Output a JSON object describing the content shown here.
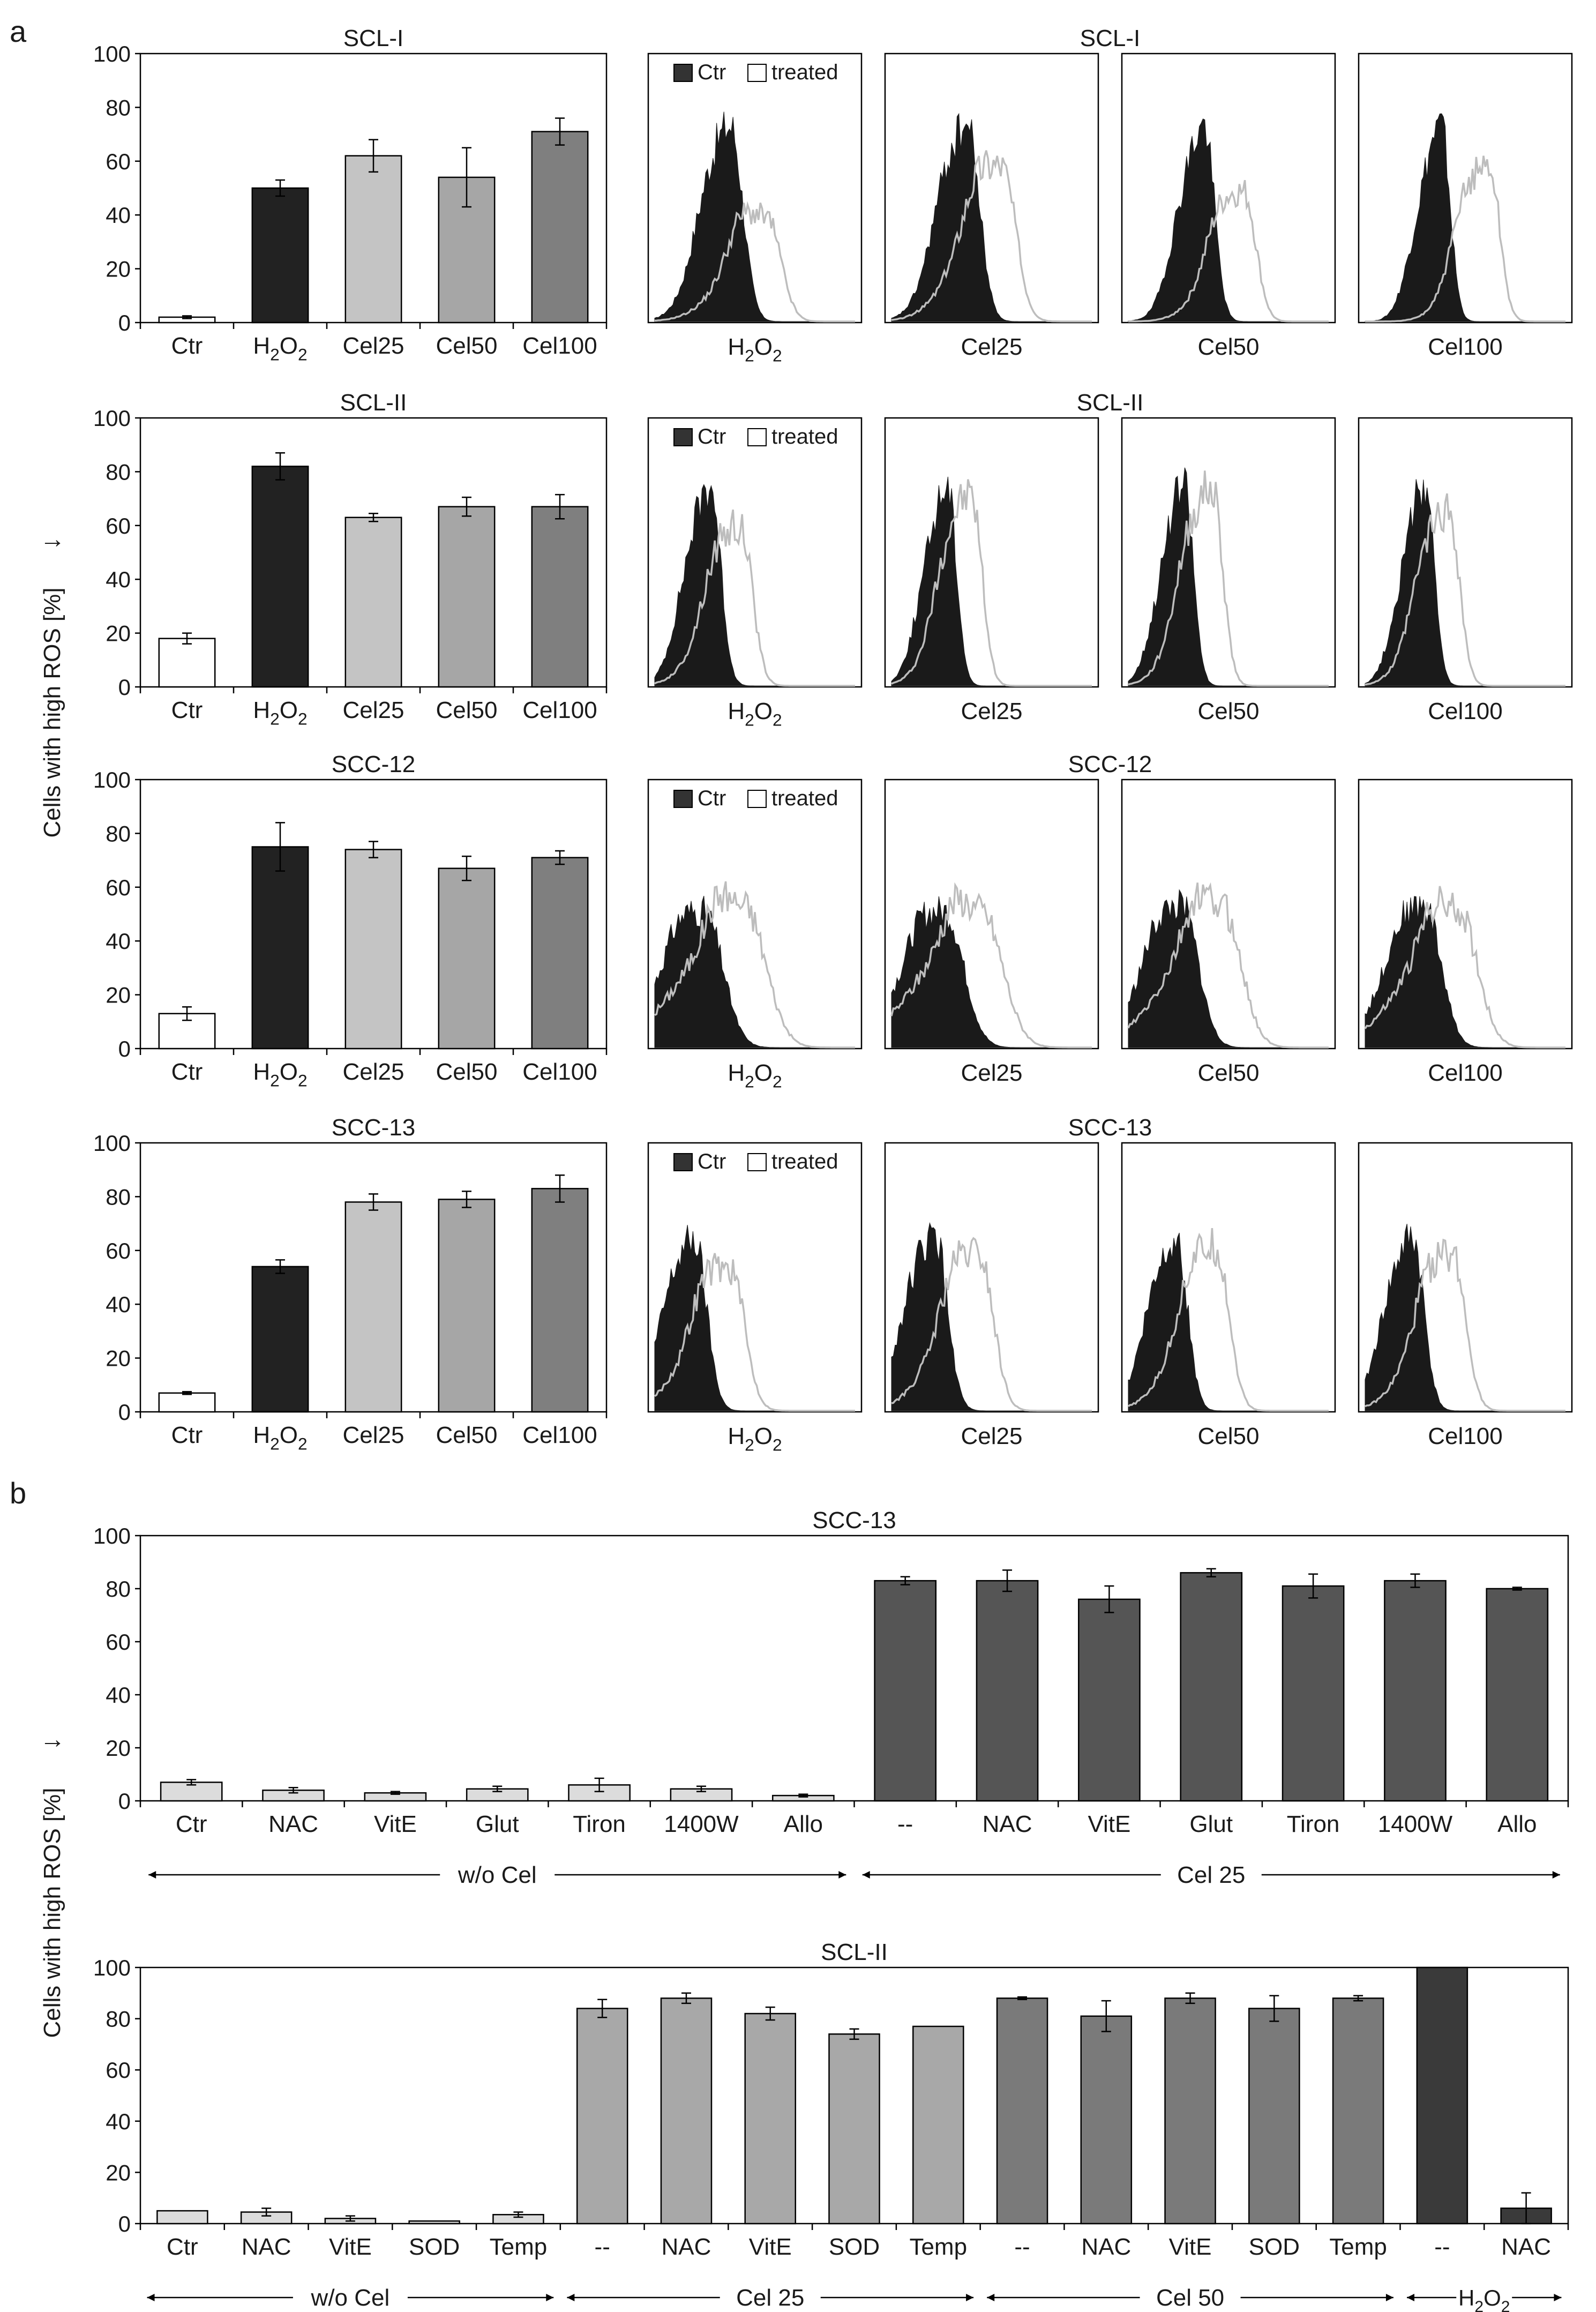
{
  "figure": {
    "panel_a_letter": "a",
    "panel_b_letter": "b",
    "y_axis_label": "Cells with high ROS [%]",
    "arrow_glyph": "→"
  },
  "colors": {
    "ctr_bar": "#ffffff",
    "h2o2_bar": "#222222",
    "cel25_bar": "#c4c4c4",
    "cel50_bar": "#a6a6a6",
    "cel100_bar": "#7f7f7f",
    "wo_cel_bar": "#dcdcdc",
    "cel25_b_bar": "#555555",
    "sclii_cel25_bar": "#a8a8a8",
    "sclii_cel50_bar": "#7a7a7a",
    "sclii_h2o2_bar": "#3a3a3a",
    "hist_ctr_fill": "#1a1a1a",
    "hist_treated_line": "#bdbdbd"
  },
  "hist_legend": {
    "ctr": "Ctr",
    "treated": "treated"
  },
  "chart_data": [
    {
      "id": "a-scl1",
      "type": "bar",
      "title": "SCL-I",
      "ylim": [
        0,
        100
      ],
      "yticks": [
        0,
        20,
        40,
        60,
        80,
        100
      ],
      "categories": [
        {
          "pre": "Ctr"
        },
        {
          "pre": "H",
          "sub": "2",
          "mid": "O",
          "sub2": "2"
        },
        {
          "pre": "Cel25"
        },
        {
          "pre": "Cel50"
        },
        {
          "pre": "Cel100"
        }
      ],
      "values": [
        2,
        50,
        62,
        54,
        71
      ],
      "errors": [
        0.5,
        3,
        6,
        11,
        5
      ],
      "colors": [
        "ctr_bar",
        "h2o2_bar",
        "cel25_bar",
        "cel50_bar",
        "cel100_bar"
      ]
    },
    {
      "id": "a-scl2",
      "type": "bar",
      "title": "SCL-II",
      "ylim": [
        0,
        100
      ],
      "yticks": [
        0,
        20,
        40,
        60,
        80,
        100
      ],
      "categories": [
        {
          "pre": "Ctr"
        },
        {
          "pre": "H",
          "sub": "2",
          "mid": "O",
          "sub2": "2"
        },
        {
          "pre": "Cel25"
        },
        {
          "pre": "Cel50"
        },
        {
          "pre": "Cel100"
        }
      ],
      "values": [
        18,
        82,
        63,
        67,
        67
      ],
      "errors": [
        2,
        5,
        1.5,
        3.5,
        4.5
      ],
      "colors": [
        "ctr_bar",
        "h2o2_bar",
        "cel25_bar",
        "cel50_bar",
        "cel100_bar"
      ]
    },
    {
      "id": "a-scc12",
      "type": "bar",
      "title": "SCC-12",
      "ylim": [
        0,
        100
      ],
      "yticks": [
        0,
        20,
        40,
        60,
        80,
        100
      ],
      "categories": [
        {
          "pre": "Ctr"
        },
        {
          "pre": "H",
          "sub": "2",
          "mid": "O",
          "sub2": "2"
        },
        {
          "pre": "Cel25"
        },
        {
          "pre": "Cel50"
        },
        {
          "pre": "Cel100"
        }
      ],
      "values": [
        13,
        75,
        74,
        67,
        71
      ],
      "errors": [
        2.5,
        9,
        3,
        4.5,
        2.5
      ],
      "colors": [
        "ctr_bar",
        "h2o2_bar",
        "cel25_bar",
        "cel50_bar",
        "cel100_bar"
      ]
    },
    {
      "id": "a-scc13",
      "type": "bar",
      "title": "SCC-13",
      "ylim": [
        0,
        100
      ],
      "yticks": [
        0,
        20,
        40,
        60,
        80,
        100
      ],
      "categories": [
        {
          "pre": "Ctr"
        },
        {
          "pre": "H",
          "sub": "2",
          "mid": "O",
          "sub2": "2"
        },
        {
          "pre": "Cel25"
        },
        {
          "pre": "Cel50"
        },
        {
          "pre": "Cel100"
        }
      ],
      "values": [
        7,
        54,
        78,
        79,
        83
      ],
      "errors": [
        0.5,
        2.5,
        3,
        3,
        5
      ],
      "colors": [
        "ctr_bar",
        "h2o2_bar",
        "cel25_bar",
        "cel50_bar",
        "cel100_bar"
      ]
    },
    {
      "id": "b-scc13",
      "type": "bar",
      "title": "SCC-13",
      "ylim": [
        0,
        100
      ],
      "yticks": [
        0,
        20,
        40,
        60,
        80,
        100
      ],
      "categories": [
        {
          "pre": "Ctr"
        },
        {
          "pre": "NAC"
        },
        {
          "pre": "VitE"
        },
        {
          "pre": "Glut"
        },
        {
          "pre": "Tiron"
        },
        {
          "pre": "1400W"
        },
        {
          "pre": "Allo"
        },
        {
          "pre": "--"
        },
        {
          "pre": "NAC"
        },
        {
          "pre": "VitE"
        },
        {
          "pre": "Glut"
        },
        {
          "pre": "Tiron"
        },
        {
          "pre": "1400W"
        },
        {
          "pre": "Allo"
        }
      ],
      "values": [
        7,
        4,
        3,
        4.5,
        6,
        4.5,
        2,
        83,
        83,
        76,
        86,
        81,
        83,
        80
      ],
      "errors": [
        1,
        1,
        0.5,
        1,
        2.5,
        1,
        0.5,
        1.5,
        4,
        5,
        1.5,
        4.5,
        2.5,
        0.5
      ],
      "colors": [
        "wo_cel_bar",
        "wo_cel_bar",
        "wo_cel_bar",
        "wo_cel_bar",
        "wo_cel_bar",
        "wo_cel_bar",
        "wo_cel_bar",
        "cel25_b_bar",
        "cel25_b_bar",
        "cel25_b_bar",
        "cel25_b_bar",
        "cel25_b_bar",
        "cel25_b_bar",
        "cel25_b_bar"
      ],
      "groups": [
        {
          "label": "w/o Cel",
          "from": 0,
          "to": 6
        },
        {
          "label": "Cel 25",
          "from": 7,
          "to": 13
        }
      ]
    },
    {
      "id": "b-scl2",
      "type": "bar",
      "title": "SCL-II",
      "ylim": [
        0,
        100
      ],
      "yticks": [
        0,
        20,
        40,
        60,
        80,
        100
      ],
      "categories": [
        {
          "pre": "Ctr"
        },
        {
          "pre": "NAC"
        },
        {
          "pre": "VitE"
        },
        {
          "pre": "SOD"
        },
        {
          "pre": "Temp"
        },
        {
          "pre": "--"
        },
        {
          "pre": "NAC"
        },
        {
          "pre": "VitE"
        },
        {
          "pre": "SOD"
        },
        {
          "pre": "Temp"
        },
        {
          "pre": "--"
        },
        {
          "pre": "NAC"
        },
        {
          "pre": "VitE"
        },
        {
          "pre": "SOD"
        },
        {
          "pre": "Temp"
        },
        {
          "pre": "--"
        },
        {
          "pre": "NAC"
        }
      ],
      "values": [
        5,
        4.5,
        2,
        1,
        3.5,
        84,
        88,
        82,
        74,
        77,
        88,
        81,
        88,
        84,
        88,
        100,
        6
      ],
      "errors": [
        0,
        1.5,
        1,
        0,
        1,
        3.5,
        2,
        2.5,
        2,
        0,
        0.5,
        6,
        2,
        5,
        1,
        0,
        6
      ],
      "colors": [
        "wo_cel_bar",
        "wo_cel_bar",
        "wo_cel_bar",
        "wo_cel_bar",
        "wo_cel_bar",
        "sclii_cel25_bar",
        "sclii_cel25_bar",
        "sclii_cel25_bar",
        "sclii_cel25_bar",
        "sclii_cel25_bar",
        "sclii_cel50_bar",
        "sclii_cel50_bar",
        "sclii_cel50_bar",
        "sclii_cel50_bar",
        "sclii_cel50_bar",
        "sclii_h2o2_bar",
        "sclii_h2o2_bar"
      ],
      "groups": [
        {
          "label": "w/o Cel",
          "from": 0,
          "to": 4
        },
        {
          "label": "Cel 25",
          "from": 5,
          "to": 9
        },
        {
          "label": "Cel 50",
          "from": 10,
          "to": 14
        },
        {
          "label_pre": "H",
          "label_sub": "2",
          "label_mid": "O",
          "label_sub2": "2",
          "from": 15,
          "to": 16
        }
      ]
    }
  ],
  "histograms": [
    {
      "row": "scl1",
      "title": "SCL-I",
      "panels": [
        {
          "label": {
            "pre": "H",
            "sub": "2",
            "mid": "O",
            "sub2": "2"
          },
          "ctr_peak": 0.38,
          "ctr_height": 0.72,
          "treated_peak": 0.56,
          "treated_height": 0.38,
          "width": 0.06
        },
        {
          "label": {
            "pre": "Cel25"
          },
          "ctr_peak": 0.38,
          "ctr_height": 0.72,
          "treated_peak": 0.55,
          "treated_height": 0.58,
          "width": 0.06
        },
        {
          "label": {
            "pre": "Cel50"
          },
          "ctr_peak": 0.38,
          "ctr_height": 0.72,
          "treated_peak": 0.58,
          "treated_height": 0.47,
          "width": 0.05
        },
        {
          "label": {
            "pre": "Cel100"
          },
          "ctr_peak": 0.38,
          "ctr_height": 0.72,
          "treated_peak": 0.62,
          "treated_height": 0.58,
          "width": 0.045
        }
      ]
    },
    {
      "row": "scl2",
      "title": "SCL-II",
      "panels": [
        {
          "label": {
            "pre": "H",
            "sub": "2",
            "mid": "O",
            "sub2": "2"
          },
          "ctr_peak": 0.28,
          "ctr_height": 0.74,
          "treated_peak": 0.43,
          "treated_height": 0.58,
          "width": 0.05
        },
        {
          "label": {
            "pre": "Cel25"
          },
          "ctr_peak": 0.28,
          "ctr_height": 0.74,
          "treated_peak": 0.4,
          "treated_height": 0.7,
          "width": 0.045
        },
        {
          "label": {
            "pre": "Cel50"
          },
          "ctr_peak": 0.28,
          "ctr_height": 0.74,
          "treated_peak": 0.42,
          "treated_height": 0.72,
          "width": 0.045
        },
        {
          "label": {
            "pre": "Cel100"
          },
          "ctr_peak": 0.3,
          "ctr_height": 0.74,
          "treated_peak": 0.42,
          "treated_height": 0.64,
          "width": 0.045
        }
      ]
    },
    {
      "row": "scc12",
      "title": "SCC-12",
      "panels": [
        {
          "label": {
            "pre": "H",
            "sub": "2",
            "mid": "O",
            "sub2": "2"
          },
          "ctr_peak": 0.25,
          "ctr_height": 0.5,
          "treated_peak": 0.45,
          "treated_height": 0.52,
          "width": 0.09
        },
        {
          "label": {
            "pre": "Cel25"
          },
          "ctr_peak": 0.27,
          "ctr_height": 0.5,
          "treated_peak": 0.45,
          "treated_height": 0.5,
          "width": 0.09
        },
        {
          "label": {
            "pre": "Cel50"
          },
          "ctr_peak": 0.27,
          "ctr_height": 0.52,
          "treated_peak": 0.47,
          "treated_height": 0.52,
          "width": 0.08
        },
        {
          "label": {
            "pre": "Cel100"
          },
          "ctr_peak": 0.3,
          "ctr_height": 0.52,
          "treated_peak": 0.47,
          "treated_height": 0.5,
          "width": 0.08
        }
      ]
    },
    {
      "row": "scc13",
      "title": "SCC-13",
      "panels": [
        {
          "label": {
            "pre": "H",
            "sub": "2",
            "mid": "O",
            "sub2": "2"
          },
          "ctr_peak": 0.2,
          "ctr_height": 0.63,
          "treated_peak": 0.38,
          "treated_height": 0.52,
          "width": 0.06
        },
        {
          "label": {
            "pre": "Cel25"
          },
          "ctr_peak": 0.22,
          "ctr_height": 0.64,
          "treated_peak": 0.44,
          "treated_height": 0.57,
          "width": 0.06
        },
        {
          "label": {
            "pre": "Cel50"
          },
          "ctr_peak": 0.24,
          "ctr_height": 0.64,
          "treated_peak": 0.44,
          "treated_height": 0.6,
          "width": 0.055
        },
        {
          "label": {
            "pre": "Cel100"
          },
          "ctr_peak": 0.24,
          "ctr_height": 0.64,
          "treated_peak": 0.44,
          "treated_height": 0.57,
          "width": 0.055
        }
      ]
    }
  ]
}
